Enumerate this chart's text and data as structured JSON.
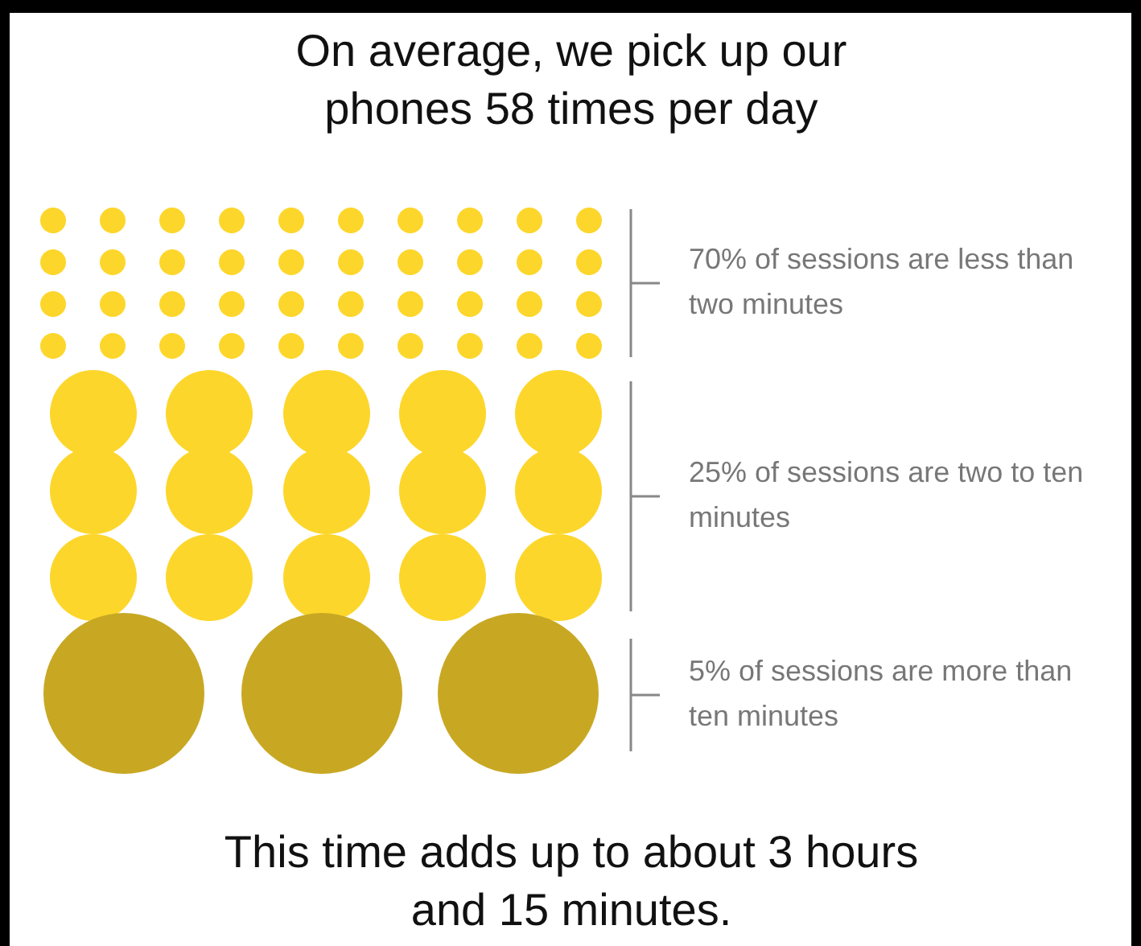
{
  "chart_data": {
    "type": "other",
    "title": "On average, we pick up our phones 58 times per day",
    "categories": [
      "of sessions are less than two minutes",
      "of sessions are two to ten minutes",
      "of sessions are more than ten minutes"
    ],
    "values": [
      70,
      25,
      5
    ],
    "value_labels": [
      "70%",
      "25%",
      "5%"
    ],
    "colors": [
      "#fdd62b",
      "#fdd62b",
      "#c8a823"
    ],
    "annotations": [
      "This time adds up to about 3 hours and 15 minutes."
    ]
  }
}
